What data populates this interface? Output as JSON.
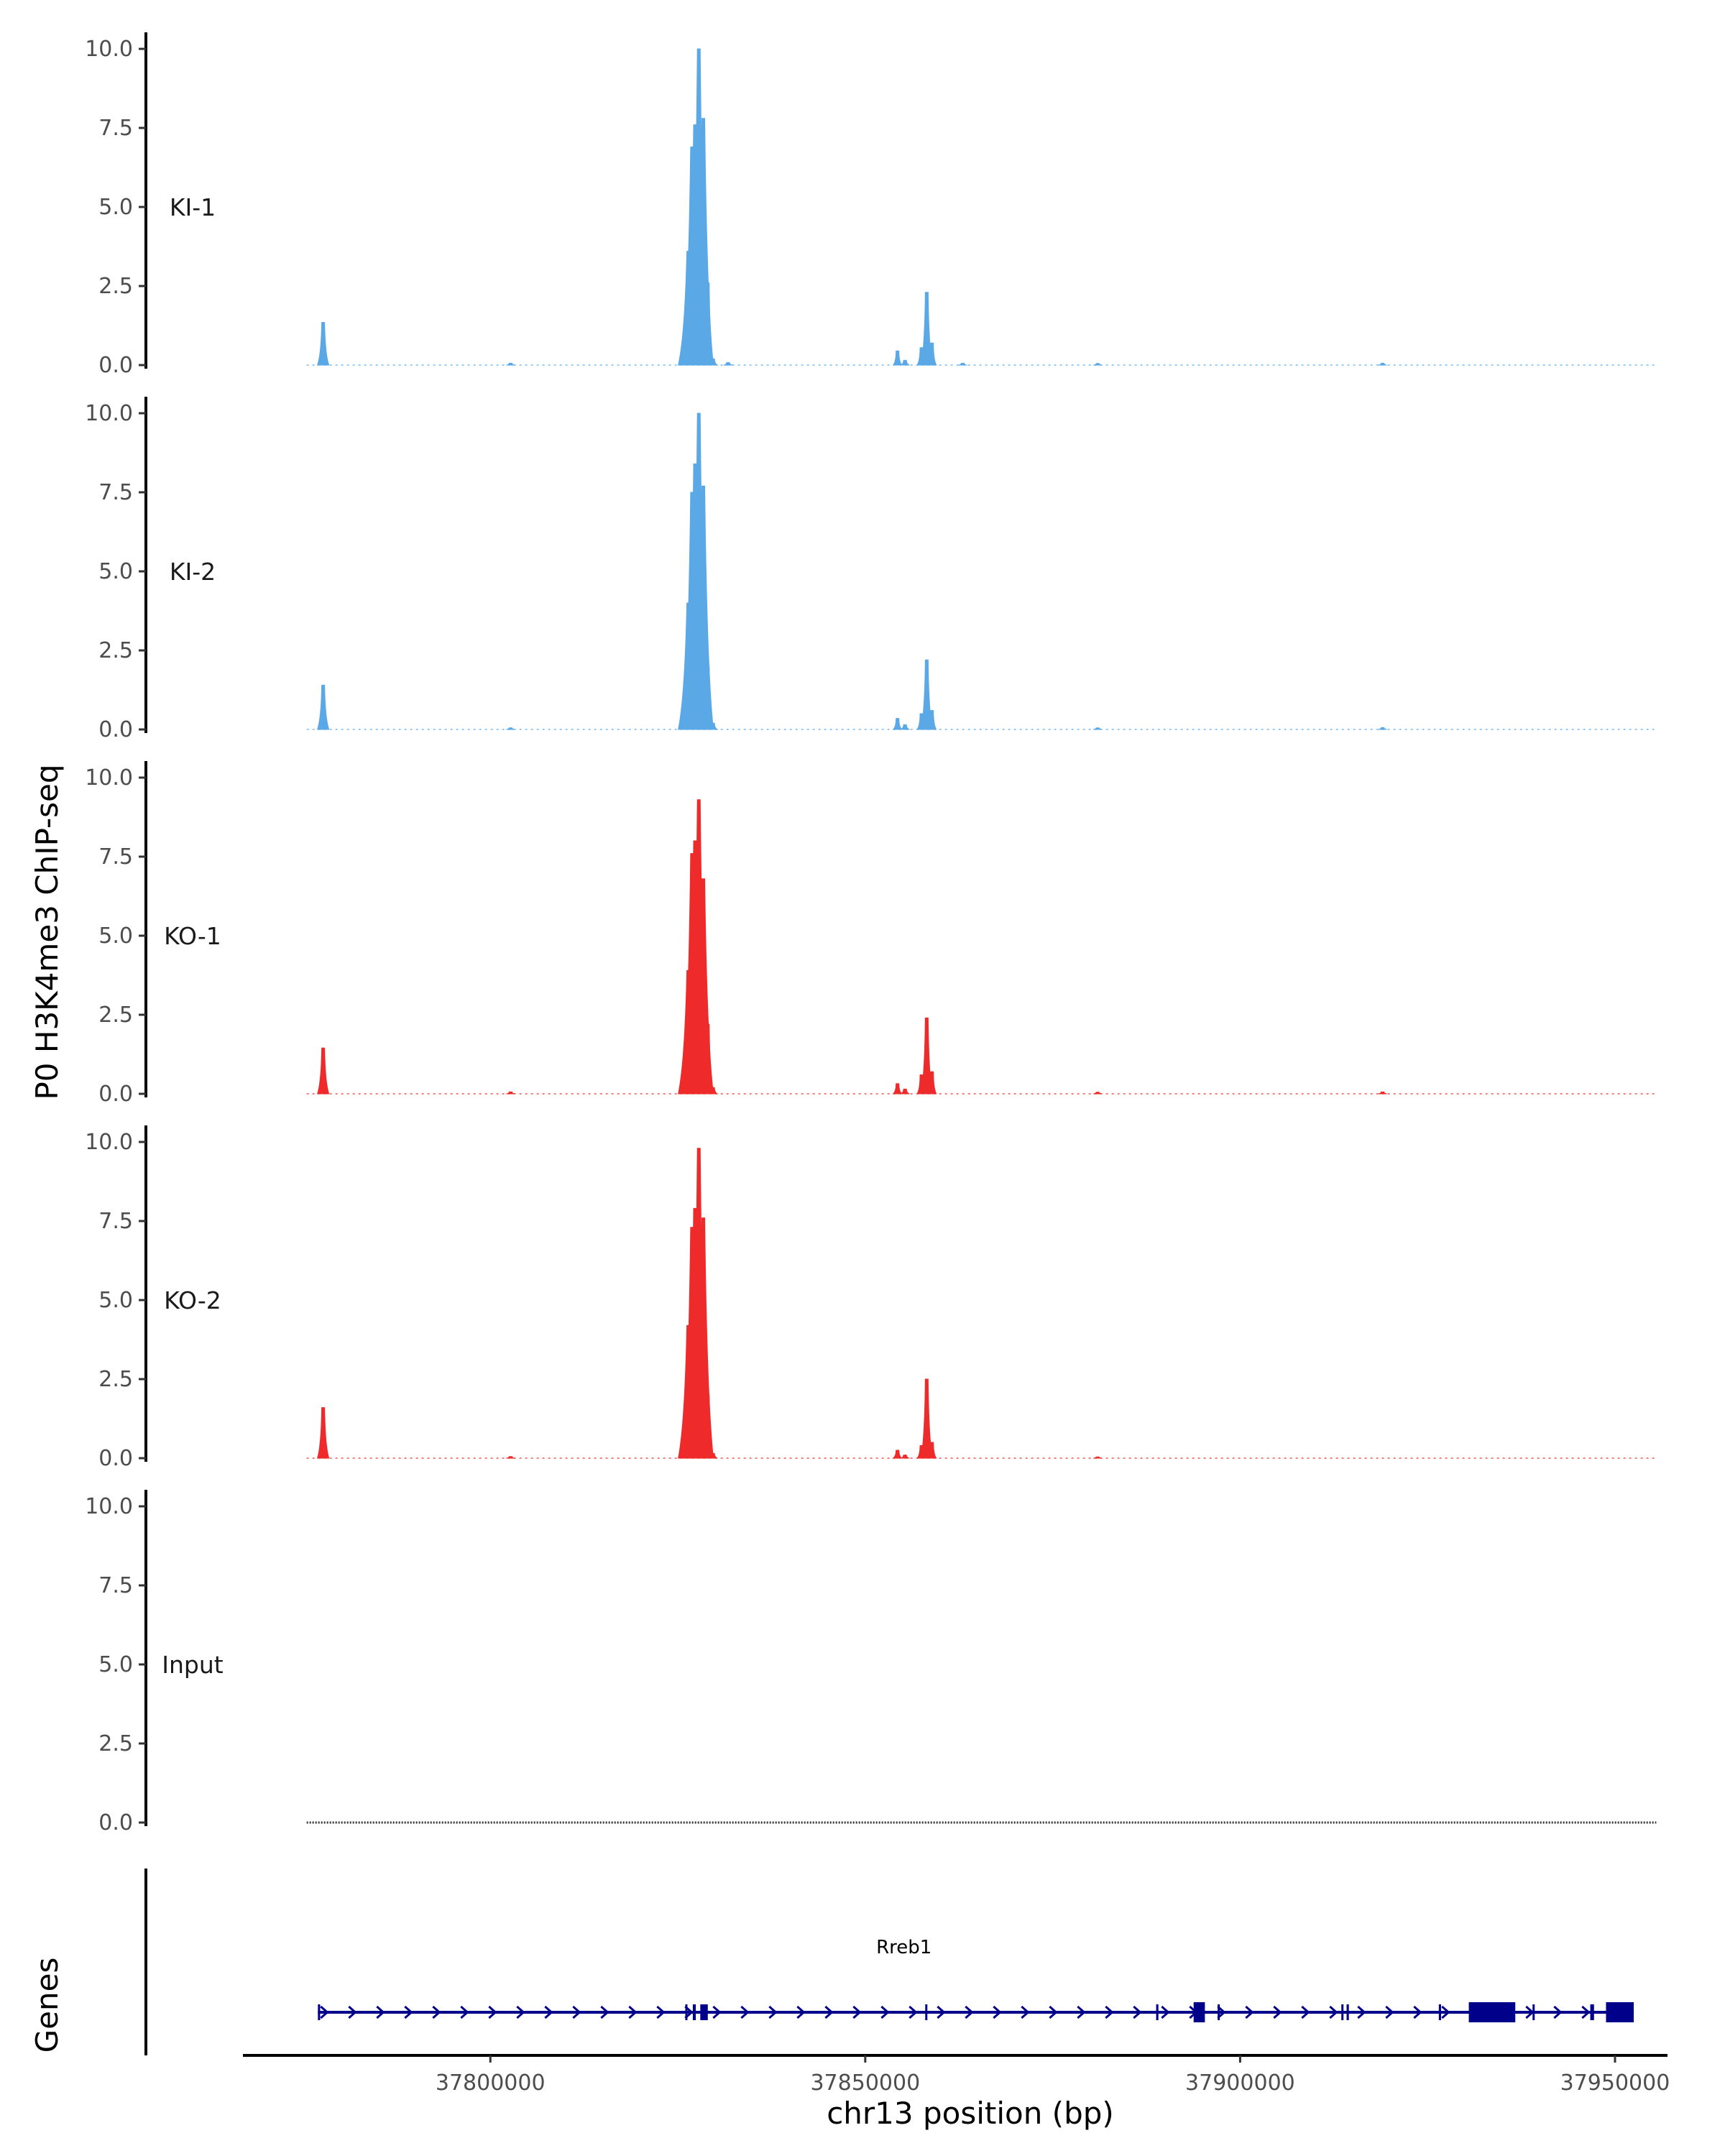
{
  "chart_data": {
    "type": "area",
    "ylabel": "P0 H3K4me3 ChIP-seq",
    "xlabel": "chr13 position (bp)",
    "genes_label": "Genes",
    "xlim": [
      37767000,
      37957000
    ],
    "x_ticks": [
      37800000,
      37850000,
      37900000,
      37950000
    ],
    "x_tick_labels": [
      "37800000",
      "37850000",
      "37900000",
      "37950000"
    ],
    "ylim": [
      0,
      10
    ],
    "y_ticks": [
      0,
      2.5,
      5,
      7.5,
      10
    ],
    "y_tick_labels": [
      "0.0",
      "2.5",
      "5.0",
      "7.5",
      "10.0"
    ],
    "data_range": [
      37775500,
      37955500
    ],
    "tracks": [
      {
        "name": "KI-1",
        "color": "#5aa8e6",
        "peaks": [
          {
            "x": 37777700,
            "y": 1.35
          },
          {
            "x": 37826400,
            "y": 3.6
          },
          {
            "x": 37826900,
            "y": 6.9
          },
          {
            "x": 37827300,
            "y": 7.6
          },
          {
            "x": 37827800,
            "y": 10.0
          },
          {
            "x": 37828400,
            "y": 7.8
          },
          {
            "x": 37829000,
            "y": 2.6
          },
          {
            "x": 37829700,
            "y": 0.2
          },
          {
            "x": 37831700,
            "y": 0.08
          },
          {
            "x": 37854300,
            "y": 0.45
          },
          {
            "x": 37855300,
            "y": 0.15
          },
          {
            "x": 37857500,
            "y": 0.55
          },
          {
            "x": 37858200,
            "y": 2.3
          },
          {
            "x": 37858900,
            "y": 0.7
          },
          {
            "x": 37802700,
            "y": 0.06
          },
          {
            "x": 37863000,
            "y": 0.06
          },
          {
            "x": 37881000,
            "y": 0.05
          },
          {
            "x": 37919000,
            "y": 0.06
          }
        ]
      },
      {
        "name": "KI-2",
        "color": "#5aa8e6",
        "peaks": [
          {
            "x": 37777700,
            "y": 1.4
          },
          {
            "x": 37826400,
            "y": 4.0
          },
          {
            "x": 37826900,
            "y": 7.5
          },
          {
            "x": 37827300,
            "y": 8.4
          },
          {
            "x": 37827800,
            "y": 10.0
          },
          {
            "x": 37828400,
            "y": 7.7
          },
          {
            "x": 37829000,
            "y": 2.0
          },
          {
            "x": 37829700,
            "y": 0.2
          },
          {
            "x": 37854300,
            "y": 0.35
          },
          {
            "x": 37855300,
            "y": 0.15
          },
          {
            "x": 37857500,
            "y": 0.5
          },
          {
            "x": 37858200,
            "y": 2.2
          },
          {
            "x": 37858900,
            "y": 0.6
          },
          {
            "x": 37802700,
            "y": 0.05
          },
          {
            "x": 37881000,
            "y": 0.05
          },
          {
            "x": 37919000,
            "y": 0.06
          }
        ]
      },
      {
        "name": "KO-1",
        "color": "#ee2a2a",
        "peaks": [
          {
            "x": 37777700,
            "y": 1.45
          },
          {
            "x": 37826400,
            "y": 3.9
          },
          {
            "x": 37826900,
            "y": 7.6
          },
          {
            "x": 37827300,
            "y": 8.0
          },
          {
            "x": 37827800,
            "y": 9.3
          },
          {
            "x": 37828400,
            "y": 6.8
          },
          {
            "x": 37829000,
            "y": 2.2
          },
          {
            "x": 37829700,
            "y": 0.2
          },
          {
            "x": 37854300,
            "y": 0.32
          },
          {
            "x": 37855300,
            "y": 0.15
          },
          {
            "x": 37857500,
            "y": 0.6
          },
          {
            "x": 37858200,
            "y": 2.4
          },
          {
            "x": 37858900,
            "y": 0.7
          },
          {
            "x": 37802700,
            "y": 0.06
          },
          {
            "x": 37881000,
            "y": 0.05
          },
          {
            "x": 37919000,
            "y": 0.06
          }
        ]
      },
      {
        "name": "KO-2",
        "color": "#ee2a2a",
        "peaks": [
          {
            "x": 37777700,
            "y": 1.6
          },
          {
            "x": 37826400,
            "y": 4.2
          },
          {
            "x": 37826900,
            "y": 7.3
          },
          {
            "x": 37827300,
            "y": 7.9
          },
          {
            "x": 37827800,
            "y": 9.8
          },
          {
            "x": 37828400,
            "y": 7.6
          },
          {
            "x": 37829000,
            "y": 2.0
          },
          {
            "x": 37829700,
            "y": 0.15
          },
          {
            "x": 37854300,
            "y": 0.25
          },
          {
            "x": 37855300,
            "y": 0.1
          },
          {
            "x": 37857500,
            "y": 0.4
          },
          {
            "x": 37858200,
            "y": 2.5
          },
          {
            "x": 37858900,
            "y": 0.5
          },
          {
            "x": 37802700,
            "y": 0.05
          },
          {
            "x": 37881000,
            "y": 0.04
          }
        ]
      },
      {
        "name": "Input",
        "color": "#000000",
        "peaks": []
      }
    ],
    "genes": [
      {
        "name": "Rreb1",
        "color": "#00008b",
        "start": 37777000,
        "end": 37952500,
        "strand": "+",
        "exons": [
          [
            37777000,
            37777300
          ],
          [
            37826000,
            37826200
          ],
          [
            37827000,
            37827400
          ],
          [
            37828000,
            37829000
          ],
          [
            37858000,
            37858200
          ],
          [
            37888800,
            37889100
          ],
          [
            37893800,
            37895300
          ],
          [
            37897000,
            37897200
          ],
          [
            37913500,
            37913700
          ],
          [
            37914200,
            37914500
          ],
          [
            37926500,
            37926800
          ],
          [
            37930500,
            37936700
          ],
          [
            37939000,
            37939200
          ],
          [
            37946700,
            37947200
          ],
          [
            37948800,
            37952500
          ]
        ]
      }
    ]
  }
}
